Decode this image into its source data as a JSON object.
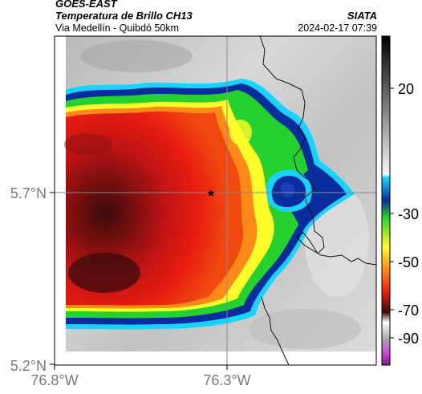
{
  "header": {
    "satellite": "GOES-EAST",
    "product": "Temperatura de Brillo CH13",
    "subtitle": "Via Medellín - Quibdó 50km",
    "organization": "SIATA",
    "datetime": "2024-02-17 07:39"
  },
  "axes": {
    "lat_ticks": [
      "5.7°N",
      "5.2°N"
    ],
    "lon_ticks": [
      "76.8°W",
      "76.3°W"
    ]
  },
  "colorbar": {
    "ticks": [
      "20",
      "-30",
      "-50",
      "-70",
      "-90"
    ]
  },
  "markers": {
    "station_symbol": "★"
  },
  "colors": {
    "background_gray": "#c8c8c8",
    "cold_core": "#3a0b0b",
    "red": "#e81c10",
    "orange": "#ff8a1a",
    "yellow": "#ffff2a",
    "green": "#24d12e",
    "blue": "#0a2d9e",
    "cyan": "#19d3ff"
  }
}
